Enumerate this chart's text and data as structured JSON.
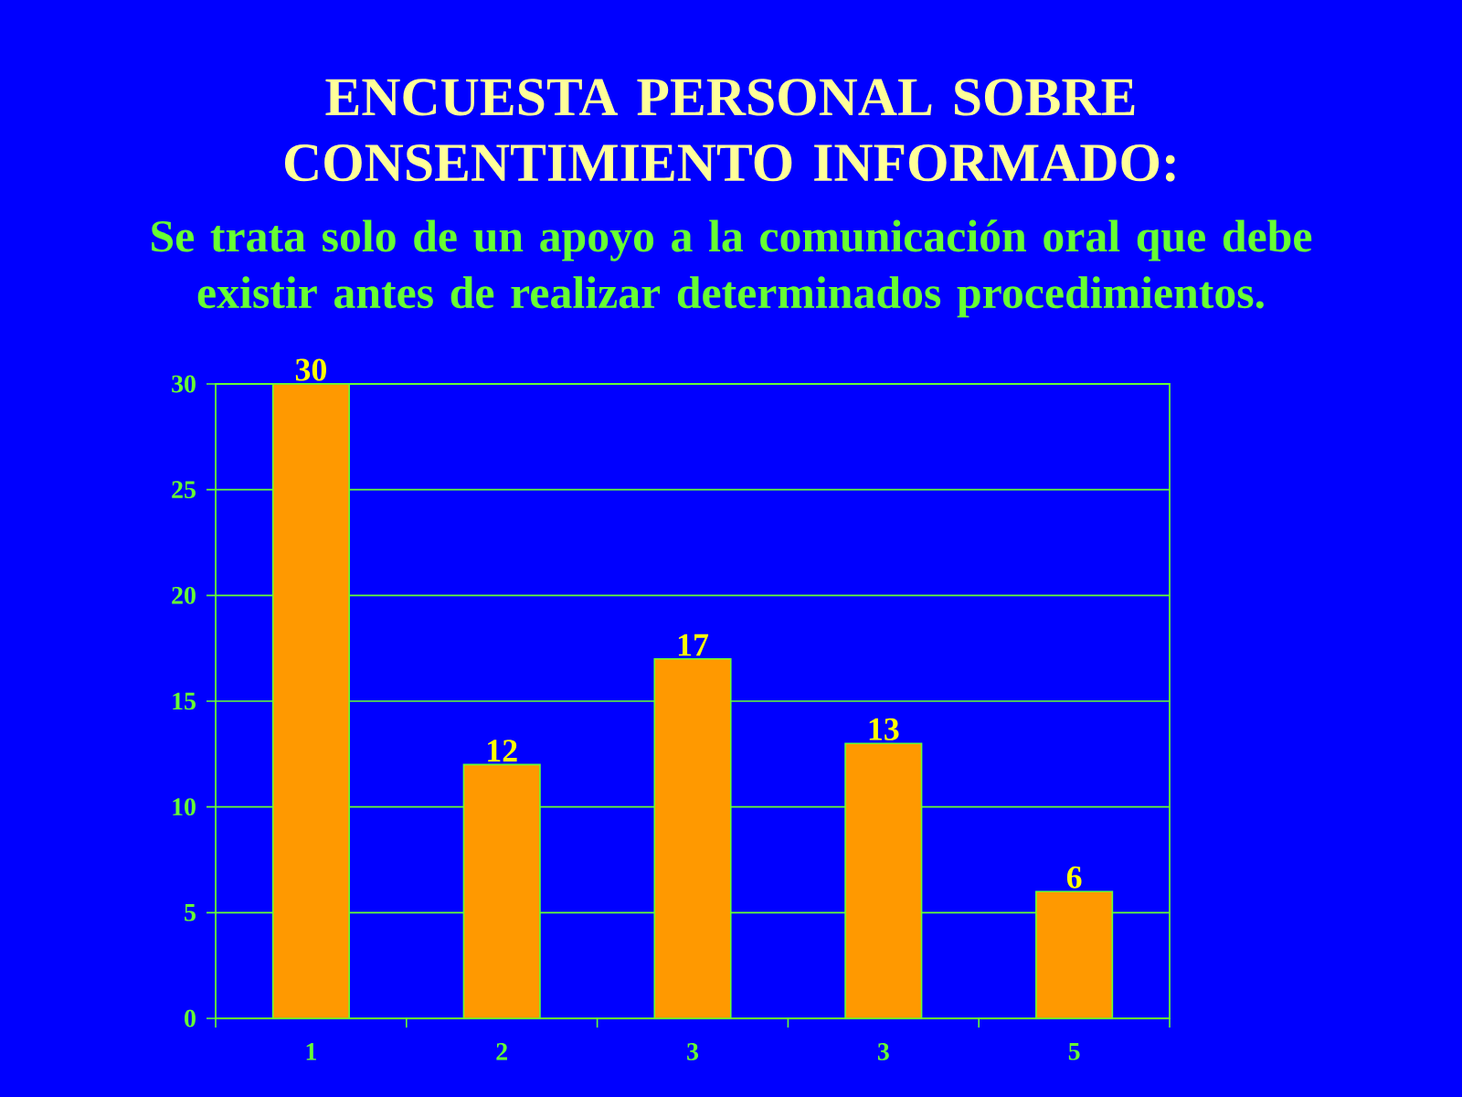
{
  "chart_data": {
    "type": "bar",
    "title": "ENCUESTA PERSONAL SOBRE CONSENTIMIENTO INFORMADO:",
    "subtitle": "Se trata solo de un apoyo a la comunicación oral que debe existir antes de realizar determinados procedimientos.",
    "categories": [
      "1",
      "2",
      "3",
      "3",
      "5"
    ],
    "values": [
      30,
      12,
      17,
      13,
      6
    ],
    "color": "#ff9900",
    "ylim": [
      0,
      30
    ],
    "yticks": [
      0,
      5,
      10,
      15,
      20,
      25,
      30
    ],
    "grid": "y",
    "data_labels": true
  }
}
